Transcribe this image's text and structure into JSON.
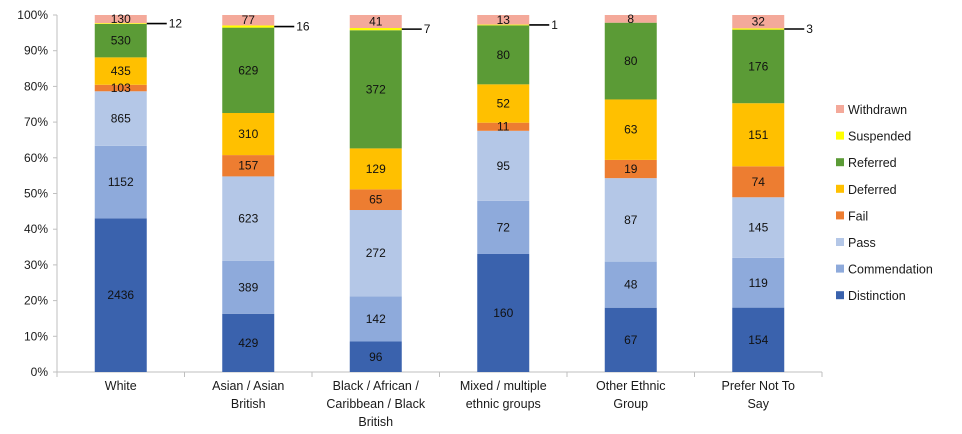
{
  "chart_data": {
    "type": "bar",
    "stacked": "percent",
    "categories": [
      "White",
      "Asian / Asian British",
      "Black / African / Caribbean / Black British",
      "Mixed / multiple ethnic groups",
      "Other Ethnic Group",
      "Prefer Not To Say"
    ],
    "category_lines": [
      [
        "White"
      ],
      [
        "Asian / Asian",
        "British"
      ],
      [
        "Black / African /",
        "Caribbean / Black",
        "British"
      ],
      [
        "Mixed / multiple",
        "ethnic groups"
      ],
      [
        "Other Ethnic",
        "Group"
      ],
      [
        "Prefer Not To",
        "Say"
      ]
    ],
    "series": [
      {
        "name": "Distinction",
        "color": "#3a62ad",
        "values": [
          2436,
          429,
          96,
          160,
          67,
          154
        ]
      },
      {
        "name": "Commendation",
        "color": "#8eaadb",
        "values": [
          1152,
          389,
          142,
          72,
          48,
          119
        ]
      },
      {
        "name": "Pass",
        "color": "#b4c7e7",
        "values": [
          865,
          623,
          272,
          95,
          87,
          145
        ]
      },
      {
        "name": "Fail",
        "color": "#ed7d31",
        "values": [
          103,
          157,
          65,
          11,
          19,
          74
        ]
      },
      {
        "name": "Deferred",
        "color": "#ffc000",
        "values": [
          435,
          310,
          129,
          52,
          63,
          151
        ]
      },
      {
        "name": "Referred",
        "color": "#5b9b36",
        "values": [
          530,
          629,
          372,
          80,
          80,
          176
        ]
      },
      {
        "name": "Suspended",
        "color": "#ffff00",
        "values": [
          12,
          16,
          7,
          1,
          0,
          3
        ]
      },
      {
        "name": "Withdrawn",
        "color": "#f4a99a",
        "values": [
          130,
          77,
          41,
          13,
          8,
          32
        ]
      }
    ],
    "callouts": [
      {
        "series": "Suspended",
        "category_index": 0,
        "label": "12"
      },
      {
        "series": "Suspended",
        "category_index": 1,
        "label": "16"
      },
      {
        "series": "Suspended",
        "category_index": 2,
        "label": "7"
      },
      {
        "series": "Suspended",
        "category_index": 3,
        "label": "1"
      },
      {
        "series": "Suspended",
        "category_index": 5,
        "label": "3"
      }
    ],
    "yticks": [
      "0%",
      "10%",
      "20%",
      "30%",
      "40%",
      "50%",
      "60%",
      "70%",
      "80%",
      "90%",
      "100%"
    ],
    "ylim": [
      0,
      100
    ],
    "grid": false,
    "legend_position": "right",
    "legend_order": [
      "Withdrawn",
      "Suspended",
      "Referred",
      "Deferred",
      "Fail",
      "Pass",
      "Commendation",
      "Distinction"
    ]
  }
}
